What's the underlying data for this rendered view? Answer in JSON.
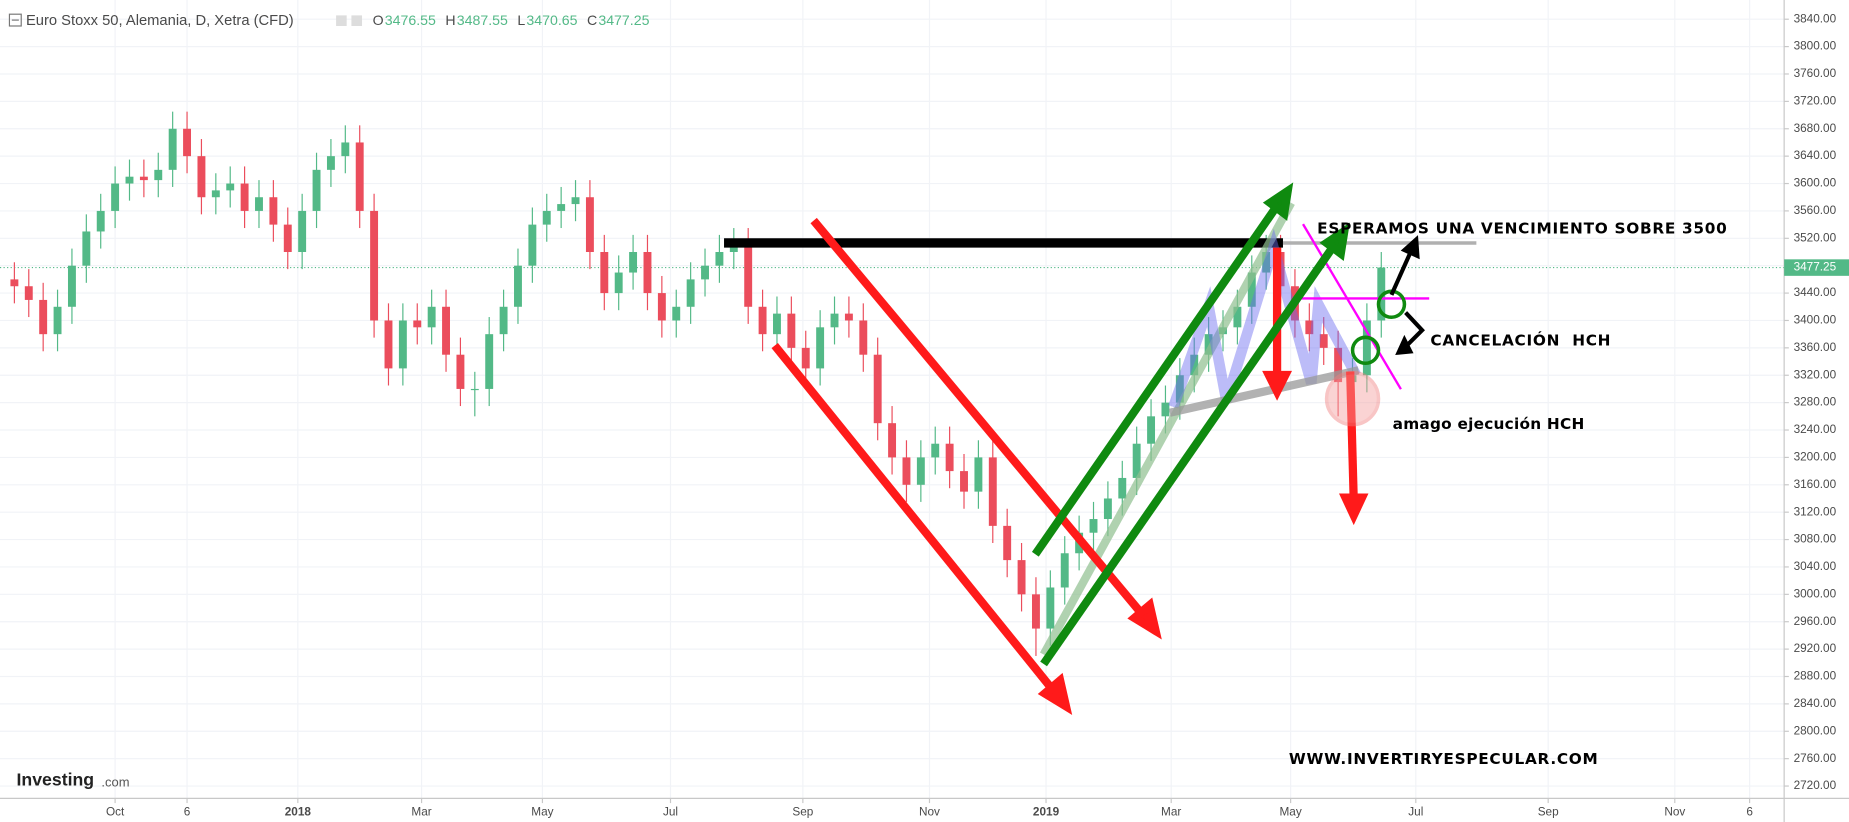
{
  "chart_data": {
    "type": "candlestick",
    "title": "Euro Stoxx 50, Alemania, D, Xetra (CFD)",
    "ohlc_header": [
      {
        "label": "O",
        "value": 3476.55
      },
      {
        "label": "H",
        "value": 3487.55
      },
      {
        "label": "L",
        "value": 3470.65
      },
      {
        "label": "C",
        "value": 3477.25
      }
    ],
    "last_price": 3477.25,
    "up_color": "#53b987",
    "down_color": "#eb4d5c",
    "grid": true,
    "annotations": {
      "target": "ESPERAMOS UNA VENCIMIENTO SOBRE 3500",
      "cancel": "CANCELACIÓN  HCH",
      "feint": "amago ejecución HCH",
      "site": "WWW.INVERTIRYESPECULAR.COM"
    },
    "logo": "Investing",
    "logo_suffix": ".com",
    "xlim": [
      -8,
      116
    ],
    "ylim": [
      2702,
      3868
    ],
    "xticks": [
      {
        "value": 0,
        "label": "Oct"
      },
      {
        "value": 5,
        "label": "6"
      },
      {
        "value": 12.7,
        "label": "2018"
      },
      {
        "value": 21.3,
        "label": "Mar"
      },
      {
        "value": 29.7,
        "label": "May"
      },
      {
        "value": 38.6,
        "label": "Jul"
      },
      {
        "value": 47.8,
        "label": "Sep"
      },
      {
        "value": 56.6,
        "label": "Nov"
      },
      {
        "value": 64.7,
        "label": "2019"
      },
      {
        "value": 73.4,
        "label": "Mar"
      },
      {
        "value": 81.7,
        "label": "May"
      },
      {
        "value": 90.4,
        "label": "Jul"
      },
      {
        "value": 99.6,
        "label": "Sep"
      },
      {
        "value": 108.4,
        "label": "Nov"
      },
      {
        "value": 113.6,
        "label": "6"
      }
    ],
    "yticks": [
      {
        "value": 2720,
        "label": "2720.00"
      },
      {
        "value": 2760,
        "label": "2760.00"
      },
      {
        "value": 2800,
        "label": "2800.00"
      },
      {
        "value": 2840,
        "label": "2840.00"
      },
      {
        "value": 2880,
        "label": "2880.00"
      },
      {
        "value": 2920,
        "label": "2920.00"
      },
      {
        "value": 2960,
        "label": "2960.00"
      },
      {
        "value": 3000,
        "label": "3000.00"
      },
      {
        "value": 3040,
        "label": "3040.00"
      },
      {
        "value": 3080,
        "label": "3080.00"
      },
      {
        "value": 3120,
        "label": "3120.00"
      },
      {
        "value": 3160,
        "label": "3160.00"
      },
      {
        "value": 3200,
        "label": "3200.00"
      },
      {
        "value": 3240,
        "label": "3240.00"
      },
      {
        "value": 3280,
        "label": "3280.00"
      },
      {
        "value": 3320,
        "label": "3320.00"
      },
      {
        "value": 3360,
        "label": "3360.00"
      },
      {
        "value": 3400,
        "label": "3400.00"
      },
      {
        "value": 3440,
        "label": "3440.00"
      },
      {
        "value": 3480,
        "label": "3480.00"
      },
      {
        "value": 3520,
        "label": "3520.00"
      },
      {
        "value": 3560,
        "label": "3560.00"
      },
      {
        "value": 3600,
        "label": "3600.00"
      },
      {
        "value": 3640,
        "label": "3640.00"
      },
      {
        "value": 3680,
        "label": "3680.00"
      },
      {
        "value": 3720,
        "label": "3720.00"
      },
      {
        "value": 3760,
        "label": "3760.00"
      },
      {
        "value": 3800,
        "label": "3800.00"
      },
      {
        "value": 3840,
        "label": "3840.00"
      }
    ],
    "x": [
      -7,
      -6,
      -5,
      -4,
      -3,
      -2,
      -1,
      0,
      1,
      2,
      3,
      4,
      5,
      6,
      7,
      8,
      9,
      10,
      11,
      12,
      13,
      14,
      15,
      16,
      17,
      18,
      19,
      20,
      21,
      22,
      23,
      24,
      25,
      26,
      27,
      28,
      29,
      30,
      31,
      32,
      33,
      34,
      35,
      36,
      37,
      38,
      39,
      40,
      41,
      42,
      43,
      44,
      45,
      46,
      47,
      48,
      49,
      50,
      51,
      52,
      53,
      54,
      55,
      56,
      57,
      58,
      59,
      60,
      61,
      62,
      63,
      64,
      65,
      66,
      67,
      68,
      69,
      70,
      71,
      72,
      73,
      74,
      75,
      76,
      77,
      78,
      79,
      80,
      81,
      82,
      83,
      84,
      85,
      86,
      87,
      88
    ],
    "open": [
      3460,
      3450,
      3430,
      3380,
      3420,
      3480,
      3530,
      3560,
      3600,
      3610,
      3605,
      3620,
      3680,
      3640,
      3580,
      3590,
      3600,
      3560,
      3580,
      3540,
      3500,
      3560,
      3620,
      3640,
      3660,
      3560,
      3400,
      3330,
      3400,
      3390,
      3420,
      3350,
      3300,
      3300,
      3380,
      3420,
      3480,
      3540,
      3560,
      3570,
      3580,
      3500,
      3440,
      3470,
      3500,
      3440,
      3400,
      3420,
      3460,
      3480,
      3500,
      3510,
      3420,
      3380,
      3410,
      3360,
      3330,
      3390,
      3410,
      3400,
      3350,
      3250,
      3200,
      3160,
      3200,
      3220,
      3180,
      3150,
      3200,
      3100,
      3050,
      3000,
      2950,
      3010,
      3060,
      3090,
      3110,
      3140,
      3170,
      3220,
      3260,
      3280,
      3320,
      3350,
      3380,
      3390,
      3420,
      3470,
      3500,
      3450,
      3400,
      3380,
      3360,
      3310,
      3320,
      3400
    ],
    "high": [
      3485,
      3475,
      3455,
      3445,
      3505,
      3555,
      3585,
      3625,
      3635,
      3635,
      3645,
      3705,
      3705,
      3665,
      3615,
      3625,
      3625,
      3605,
      3605,
      3565,
      3585,
      3645,
      3665,
      3685,
      3685,
      3585,
      3425,
      3425,
      3425,
      3445,
      3445,
      3375,
      3325,
      3405,
      3445,
      3505,
      3565,
      3585,
      3595,
      3605,
      3605,
      3525,
      3495,
      3525,
      3525,
      3465,
      3445,
      3485,
      3505,
      3525,
      3535,
      3535,
      3445,
      3435,
      3435,
      3385,
      3415,
      3435,
      3435,
      3425,
      3375,
      3275,
      3225,
      3225,
      3245,
      3245,
      3205,
      3225,
      3225,
      3125,
      3075,
      3025,
      3035,
      3085,
      3115,
      3135,
      3165,
      3195,
      3245,
      3285,
      3305,
      3345,
      3375,
      3405,
      3415,
      3445,
      3495,
      3525,
      3525,
      3475,
      3425,
      3405,
      3385,
      3345,
      3425,
      3500
    ],
    "low": [
      3425,
      3405,
      3355,
      3355,
      3395,
      3455,
      3505,
      3535,
      3575,
      3580,
      3580,
      3595,
      3615,
      3555,
      3555,
      3565,
      3535,
      3535,
      3515,
      3475,
      3475,
      3535,
      3595,
      3615,
      3535,
      3375,
      3305,
      3305,
      3365,
      3365,
      3325,
      3275,
      3260,
      3275,
      3355,
      3395,
      3455,
      3515,
      3535,
      3545,
      3475,
      3415,
      3415,
      3445,
      3415,
      3375,
      3375,
      3395,
      3435,
      3455,
      3475,
      3395,
      3355,
      3355,
      3335,
      3305,
      3305,
      3365,
      3375,
      3325,
      3225,
      3175,
      3135,
      3135,
      3175,
      3155,
      3125,
      3125,
      3075,
      3025,
      2975,
      2910,
      2925,
      2985,
      3035,
      3065,
      3085,
      3115,
      3145,
      3195,
      3235,
      3255,
      3295,
      3325,
      3355,
      3365,
      3395,
      3445,
      3425,
      3375,
      3355,
      3335,
      3260,
      3285,
      3295,
      3375
    ],
    "close": [
      3450,
      3430,
      3380,
      3420,
      3480,
      3530,
      3560,
      3600,
      3610,
      3605,
      3620,
      3680,
      3640,
      3580,
      3590,
      3600,
      3560,
      3580,
      3540,
      3500,
      3560,
      3620,
      3640,
      3660,
      3560,
      3400,
      3330,
      3400,
      3390,
      3420,
      3350,
      3300,
      3300,
      3380,
      3420,
      3480,
      3540,
      3560,
      3570,
      3580,
      3500,
      3440,
      3470,
      3500,
      3440,
      3400,
      3420,
      3460,
      3480,
      3500,
      3510,
      3420,
      3380,
      3410,
      3360,
      3330,
      3390,
      3410,
      3400,
      3350,
      3250,
      3200,
      3160,
      3200,
      3220,
      3180,
      3150,
      3200,
      3100,
      3050,
      3000,
      2950,
      3010,
      3060,
      3090,
      3110,
      3140,
      3170,
      3220,
      3260,
      3280,
      3320,
      3350,
      3380,
      3390,
      3420,
      3470,
      3500,
      3450,
      3400,
      3380,
      3360,
      3310,
      3320,
      3400,
      3477.25
    ]
  }
}
